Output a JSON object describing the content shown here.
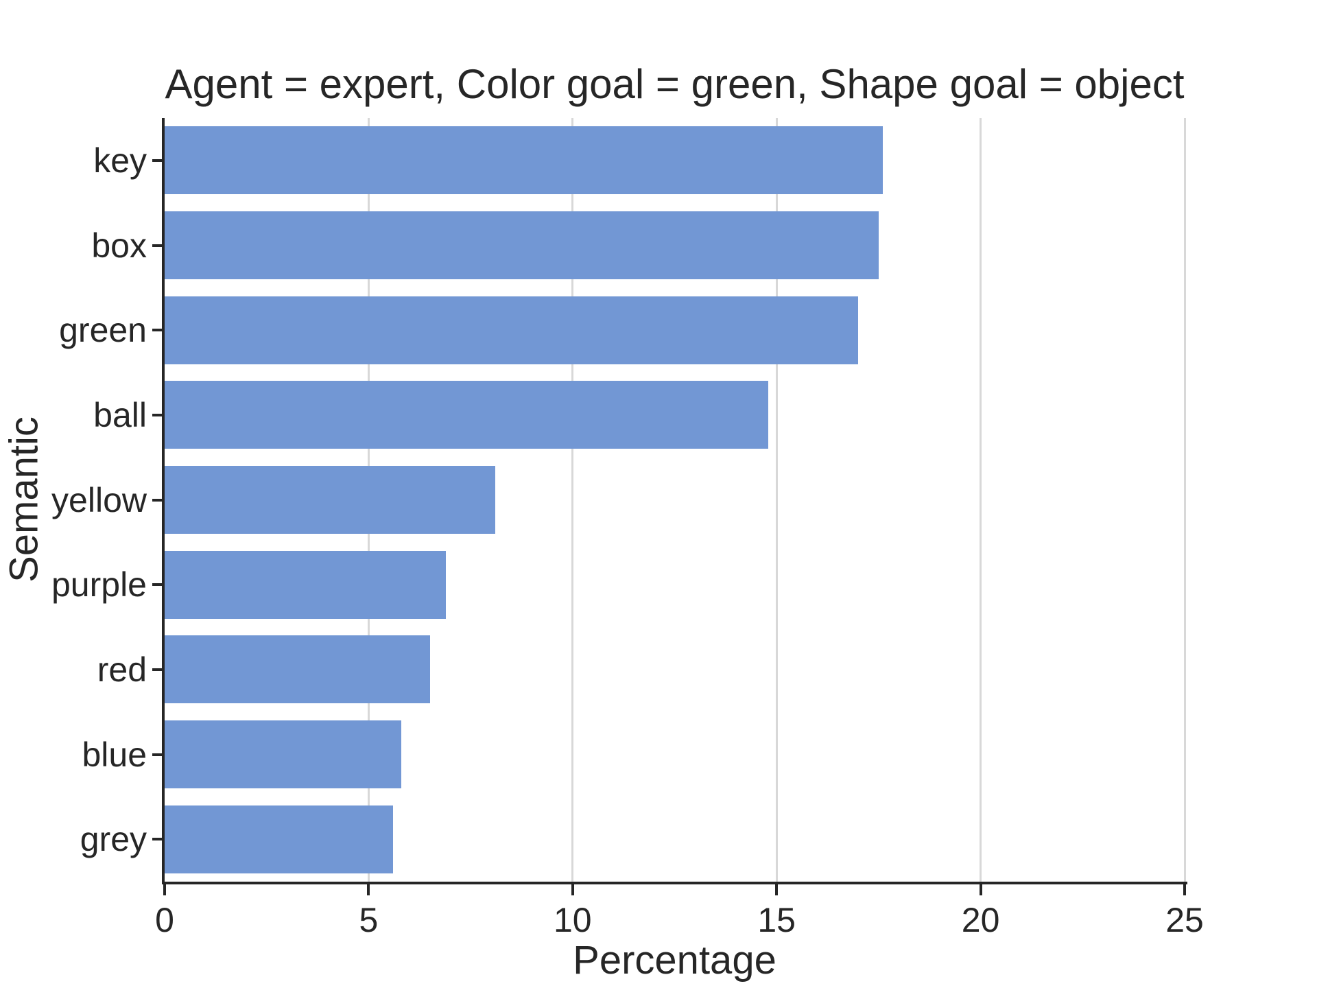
{
  "chart_data": {
    "type": "bar",
    "orientation": "horizontal",
    "title": "Agent = expert, Color goal = green, Shape goal = object",
    "categories": [
      "key",
      "box",
      "green",
      "ball",
      "yellow",
      "purple",
      "red",
      "blue",
      "grey"
    ],
    "values": [
      17.6,
      17.5,
      17.0,
      14.8,
      8.1,
      6.9,
      6.5,
      5.8,
      5.6
    ],
    "xlabel": "Percentage",
    "ylabel": "Semantic",
    "xlim": [
      0,
      25
    ],
    "xticks": [
      0,
      5,
      10,
      15,
      20,
      25
    ],
    "legend": "none",
    "grid": "vertical lines at x ticks, drawn behind bars",
    "bar_height_fraction": 0.8,
    "colors": {
      "bar": "#7297d4",
      "grid": "#d8d8d8",
      "axis": "#262626",
      "text": "#262626",
      "background": "#ffffff"
    }
  }
}
